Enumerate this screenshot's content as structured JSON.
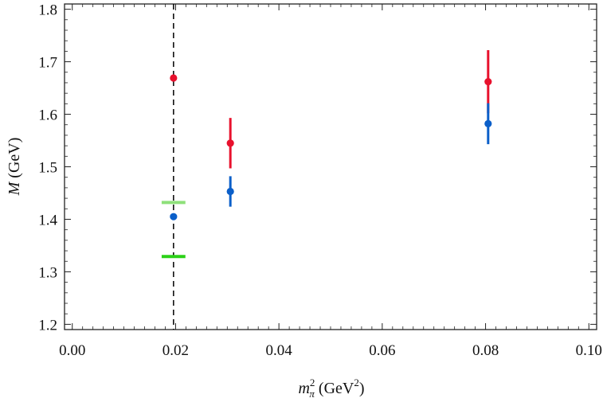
{
  "chart_data": {
    "type": "scatter",
    "title": "",
    "xlabel": {
      "base": "m",
      "sup": "2",
      "sub": "π",
      "unit_open": " (GeV",
      "unit_sup": "2",
      "unit_close": ")"
    },
    "ylabel": {
      "var": "M",
      "unit": " (GeV)"
    },
    "xlim": [
      -0.0015,
      0.1015
    ],
    "ylim": [
      1.19,
      1.81
    ],
    "xticks": [
      0.0,
      0.02,
      0.04,
      0.06,
      0.08,
      0.1
    ],
    "xtick_labels": [
      "0.00",
      "0.02",
      "0.04",
      "0.06",
      "0.08",
      "0.10"
    ],
    "yticks": [
      1.2,
      1.3,
      1.4,
      1.5,
      1.6,
      1.7,
      1.8
    ],
    "ytick_labels": [
      "1.2",
      "1.3",
      "1.4",
      "1.5",
      "1.6",
      "1.7",
      "1.8"
    ],
    "grid": false,
    "vertical_line": {
      "x": 0.0196,
      "style": "dashed",
      "color": "#000000"
    },
    "series": [
      {
        "name": "red",
        "color": "#e8112d",
        "points": [
          {
            "x": 0.0196,
            "y": 1.669,
            "err": 0.0
          },
          {
            "x": 0.0306,
            "y": 1.545,
            "err": 0.048
          },
          {
            "x": 0.0805,
            "y": 1.662,
            "err": 0.06
          }
        ]
      },
      {
        "name": "blue",
        "color": "#0b5fc9",
        "points": [
          {
            "x": 0.0196,
            "y": 1.405,
            "err": 0.0
          },
          {
            "x": 0.0306,
            "y": 1.453,
            "err": 0.029
          },
          {
            "x": 0.0805,
            "y": 1.582,
            "err": 0.039
          }
        ]
      }
    ],
    "reference_levels": [
      {
        "name": "light-green-level",
        "x": 0.0196,
        "y": 1.432,
        "half_width": 0.0023,
        "color": "#8ee07a"
      },
      {
        "name": "green-level",
        "x": 0.0196,
        "y": 1.329,
        "half_width": 0.0023,
        "color": "#2bd117"
      }
    ]
  }
}
